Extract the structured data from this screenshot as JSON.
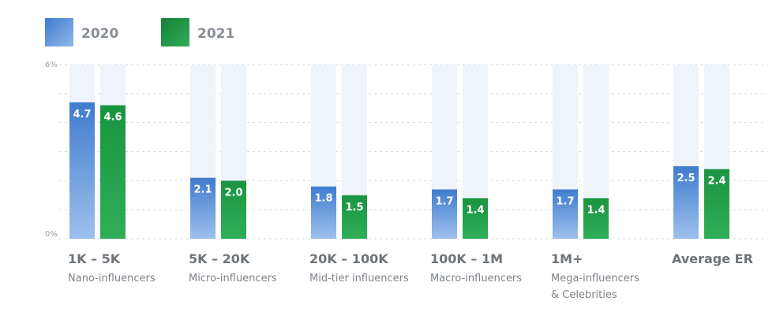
{
  "chart_data": {
    "type": "bar",
    "categories": [
      {
        "title": "1K – 5K",
        "subtitle": [
          "Nano-influencers"
        ]
      },
      {
        "title": "5K – 20K",
        "subtitle": [
          "Micro-influencers"
        ]
      },
      {
        "title": "20K – 100K",
        "subtitle": [
          "Mid-tier influencers"
        ]
      },
      {
        "title": "100K – 1M",
        "subtitle": [
          "Macro-influencers"
        ]
      },
      {
        "title": "1M+",
        "subtitle": [
          "Mega-influencers",
          "& Celebrities"
        ]
      },
      {
        "title": "Average ER",
        "subtitle": []
      }
    ],
    "series": [
      {
        "name": "2020",
        "color": "#4a86d4",
        "values": [
          4.7,
          2.1,
          1.8,
          1.7,
          1.7,
          2.5
        ]
      },
      {
        "name": "2021",
        "color": "#1e9a45",
        "values": [
          4.6,
          2.0,
          1.5,
          1.4,
          1.4,
          2.4
        ]
      }
    ],
    "y_axis": {
      "top_label": "6%",
      "bottom_label": "0%",
      "ylim": [
        0,
        6
      ]
    },
    "value_labels": [
      [
        "4.7",
        "2.1",
        "1.8",
        "1.7",
        "1.7",
        "2.5"
      ],
      [
        "4.6",
        "2.0",
        "1.5",
        "1.4",
        "1.4",
        "2.4"
      ]
    ],
    "grid": true,
    "legend": "top-left"
  }
}
